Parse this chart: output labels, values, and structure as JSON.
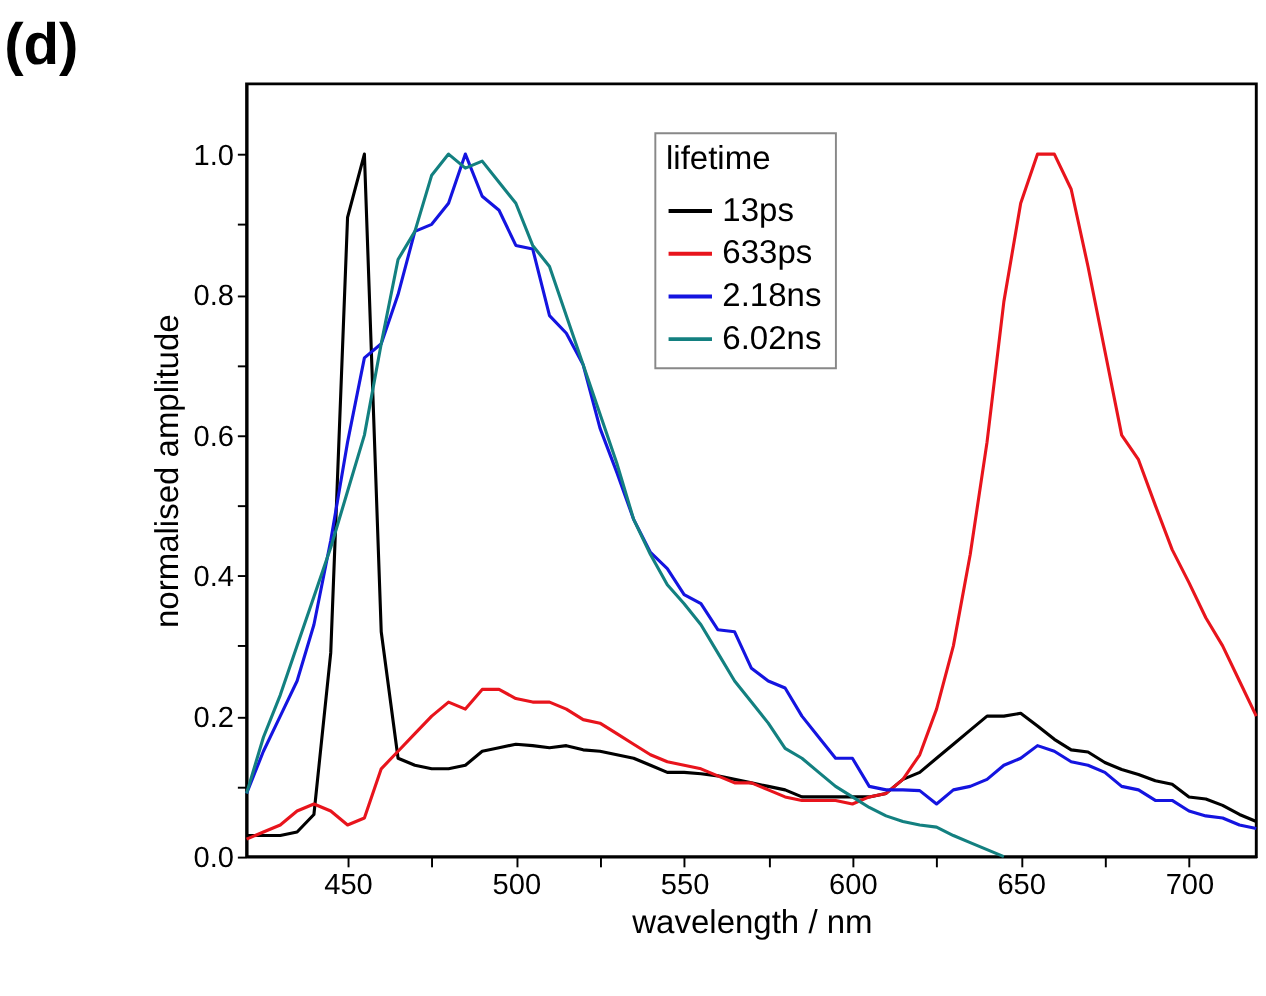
{
  "chart_data": {
    "type": "line",
    "title": "(d)",
    "xlabel": "wavelength / nm",
    "ylabel": "normalised amplitude",
    "legend_title": "lifetime",
    "legend": "top",
    "grid": false,
    "marker": "none",
    "line_style": "solid",
    "xlim": [
      420,
      720
    ],
    "ylim": [
      0,
      1.1
    ],
    "xticks": [
      450,
      {
        "value": 475,
        "label": null
      },
      500,
      {
        "value": 525,
        "label": null
      },
      550,
      {
        "value": 575,
        "label": null
      },
      600,
      {
        "value": 625,
        "label": null
      },
      650,
      {
        "value": 675,
        "label": null
      },
      700
    ],
    "yticks": [
      {
        "value": 0,
        "label": "0.0"
      },
      {
        "value": 0.1,
        "label": null
      },
      0.2,
      {
        "value": 0.3,
        "label": null
      },
      0.4,
      {
        "value": 0.5,
        "label": null
      },
      0.6,
      {
        "value": 0.7,
        "label": null
      },
      0.8,
      {
        "value": 0.9,
        "label": null
      },
      {
        "value": 1.0,
        "label": "1.0"
      }
    ],
    "x": [
      420,
      425,
      430,
      435,
      440,
      445,
      450,
      455,
      460,
      465,
      470,
      475,
      480,
      485,
      490,
      495,
      500,
      505,
      510,
      515,
      520,
      525,
      530,
      535,
      540,
      545,
      550,
      555,
      560,
      565,
      570,
      575,
      580,
      585,
      590,
      595,
      600,
      605,
      610,
      615,
      620,
      625,
      630,
      635,
      640,
      645,
      650,
      655,
      660,
      665,
      670,
      675,
      680,
      685,
      690,
      695,
      700,
      705,
      710,
      715,
      720
    ],
    "series": [
      {
        "name": "13ps",
        "color": "#000000",
        "values": [
          0.03,
          0.03,
          0.03,
          0.035,
          0.06,
          0.29,
          0.91,
          1.0,
          0.32,
          0.14,
          0.13,
          0.125,
          0.125,
          0.13,
          0.15,
          0.155,
          0.16,
          0.158,
          0.155,
          0.158,
          0.152,
          0.15,
          0.145,
          0.14,
          0.13,
          0.12,
          0.12,
          0.118,
          0.115,
          0.11,
          0.105,
          0.1,
          0.095,
          0.085,
          0.085,
          0.085,
          0.085,
          0.085,
          0.09,
          0.11,
          0.12,
          0.14,
          0.16,
          0.18,
          0.2,
          0.2,
          0.204,
          0.186,
          0.167,
          0.152,
          0.149,
          0.134,
          0.124,
          0.117,
          0.108,
          0.103,
          0.085,
          0.082,
          0.073,
          0.06,
          0.05
        ]
      },
      {
        "name": "633ps",
        "color": "#e8141c",
        "values": [
          0.025,
          0.035,
          0.045,
          0.065,
          0.075,
          0.065,
          0.045,
          0.055,
          0.125,
          0.15,
          0.175,
          0.2,
          0.22,
          0.21,
          0.238,
          0.238,
          0.225,
          0.22,
          0.22,
          0.21,
          0.195,
          0.19,
          0.175,
          0.16,
          0.145,
          0.135,
          0.13,
          0.125,
          0.115,
          0.105,
          0.105,
          0.095,
          0.085,
          0.08,
          0.08,
          0.08,
          0.075,
          0.085,
          0.09,
          0.11,
          0.145,
          0.21,
          0.3,
          0.43,
          0.59,
          0.79,
          0.93,
          1.0,
          1.0,
          0.95,
          0.84,
          0.72,
          0.6,
          0.565,
          0.5,
          0.437,
          0.39,
          0.34,
          0.3,
          0.25,
          0.2
        ]
      },
      {
        "name": "2.18ns",
        "color": "#1414e0",
        "values": [
          0.09,
          0.15,
          0.2,
          0.25,
          0.33,
          0.45,
          0.59,
          0.71,
          0.73,
          0.8,
          0.89,
          0.9,
          0.93,
          1.0,
          0.94,
          0.92,
          0.87,
          0.865,
          0.77,
          0.745,
          0.7,
          0.61,
          0.547,
          0.48,
          0.433,
          0.41,
          0.373,
          0.36,
          0.323,
          0.32,
          0.268,
          0.25,
          0.24,
          0.2,
          0.17,
          0.14,
          0.14,
          0.1,
          0.095,
          0.095,
          0.094,
          0.075,
          0.095,
          0.1,
          0.11,
          0.13,
          0.14,
          0.158,
          0.15,
          0.135,
          0.13,
          0.12,
          0.1,
          0.095,
          0.08,
          0.08,
          0.065,
          0.058,
          0.055,
          0.045,
          0.04
        ]
      },
      {
        "name": "6.02ns",
        "color": "#138080",
        "values": [
          0.09,
          0.17,
          0.23,
          0.3,
          0.37,
          0.44,
          0.52,
          0.6,
          0.73,
          0.85,
          0.89,
          0.97,
          1.0,
          0.98,
          0.99,
          0.96,
          0.93,
          0.87,
          0.84,
          0.77,
          0.7,
          0.63,
          0.56,
          0.48,
          0.43,
          0.387,
          0.36,
          0.33,
          0.29,
          0.25,
          0.22,
          0.19,
          0.154,
          0.14,
          0.12,
          0.1,
          0.085,
          0.07,
          0.058,
          0.05,
          0.045,
          0.042,
          0.03,
          0.02,
          0.01,
          0.0,
          null,
          null,
          null,
          null,
          null,
          null,
          null,
          null,
          null,
          null,
          null,
          null,
          null,
          null,
          null
        ]
      }
    ]
  }
}
